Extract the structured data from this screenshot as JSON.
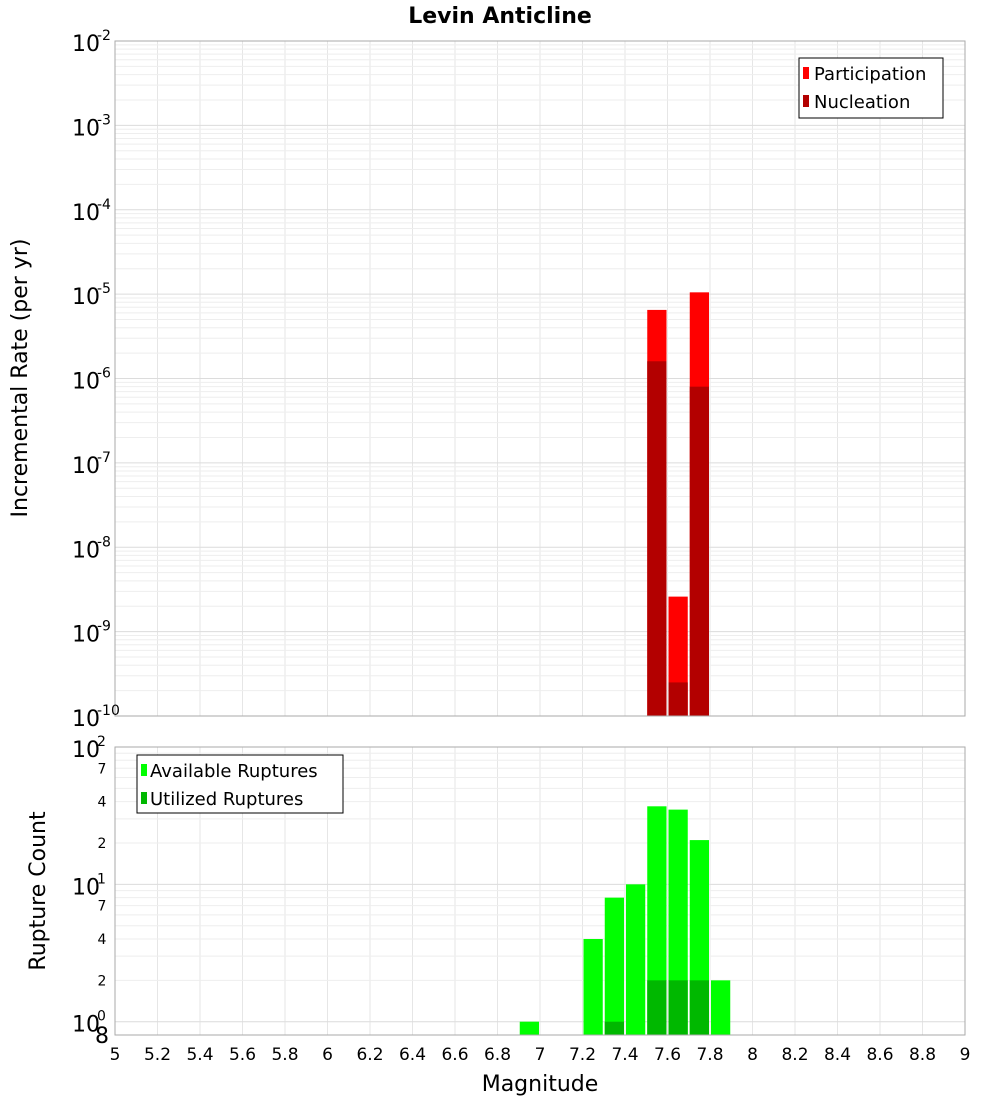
{
  "chart_data": [
    {
      "type": "bar",
      "title": "Levin Anticline",
      "xlabel": "",
      "ylabel": "Incremental Rate (per yr)",
      "y_scale": "log",
      "ylim": [
        1e-10,
        0.01
      ],
      "xlim": [
        5,
        9
      ],
      "bar_width": 0.1,
      "grid": true,
      "legend_position": "top-right",
      "y_ticks": [
        {
          "base": "10",
          "exp": "-10",
          "value": 1e-10
        },
        {
          "base": "10",
          "exp": "-9",
          "value": 1e-09
        },
        {
          "base": "10",
          "exp": "-8",
          "value": 1e-08
        },
        {
          "base": "10",
          "exp": "-7",
          "value": 1e-07
        },
        {
          "base": "10",
          "exp": "-6",
          "value": 1e-06
        },
        {
          "base": "10",
          "exp": "-5",
          "value": 1e-05
        },
        {
          "base": "10",
          "exp": "-4",
          "value": 0.0001
        },
        {
          "base": "10",
          "exp": "-3",
          "value": 0.001
        },
        {
          "base": "10",
          "exp": "-2",
          "value": 0.01
        }
      ],
      "series": [
        {
          "name": "Participation",
          "color": "#ff0000",
          "x": [
            7.55,
            7.65,
            7.75
          ],
          "values": [
            6.5e-06,
            2.6e-09,
            1.05e-05
          ]
        },
        {
          "name": "Nucleation",
          "color": "#b30000",
          "x": [
            7.55,
            7.65,
            7.75
          ],
          "values": [
            1.6e-06,
            2.5e-10,
            8e-07
          ]
        }
      ]
    },
    {
      "type": "bar",
      "title": "",
      "xlabel": "Magnitude",
      "ylabel": "Rupture Count",
      "y_scale": "log",
      "ylim": [
        0.8,
        100
      ],
      "xlim": [
        5,
        9
      ],
      "bar_width": 0.1,
      "grid": true,
      "legend_position": "top-left",
      "x_ticks": [
        "5",
        "5.2",
        "5.4",
        "5.6",
        "5.8",
        "6",
        "6.2",
        "6.4",
        "6.6",
        "6.8",
        "7",
        "7.2",
        "7.4",
        "7.6",
        "7.8",
        "8",
        "8.2",
        "8.4",
        "8.6",
        "8.8",
        "9"
      ],
      "y_major_ticks": [
        {
          "base": "10",
          "exp": "0",
          "value": 1
        },
        {
          "base": "10",
          "exp": "1",
          "value": 10
        },
        {
          "base": "10",
          "exp": "2",
          "value": 100
        }
      ],
      "y_minor_ticks": [
        {
          "label": "8",
          "value": 0.8
        },
        {
          "label": "2",
          "value": 2
        },
        {
          "label": "4",
          "value": 4
        },
        {
          "label": "7",
          "value": 7
        },
        {
          "label": "2",
          "value": 20
        },
        {
          "label": "4",
          "value": 40
        },
        {
          "label": "7",
          "value": 70
        }
      ],
      "series": [
        {
          "name": "Available Ruptures",
          "color": "#00ff00",
          "x": [
            6.95,
            7.25,
            7.35,
            7.45,
            7.55,
            7.65,
            7.75,
            7.85
          ],
          "values": [
            1,
            4,
            8,
            10,
            37,
            35,
            21,
            2
          ]
        },
        {
          "name": "Utilized Ruptures",
          "color": "#00b800",
          "x": [
            7.35,
            7.55,
            7.65,
            7.75
          ],
          "values": [
            1,
            2,
            2,
            2
          ]
        }
      ]
    }
  ]
}
